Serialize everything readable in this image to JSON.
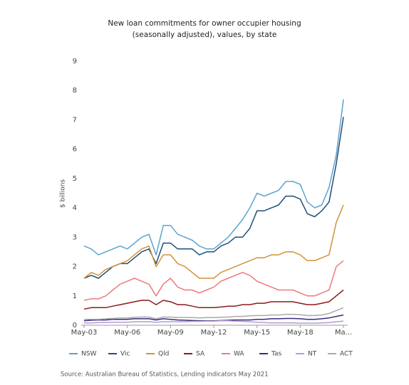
{
  "chart_data": {
    "type": "line",
    "title": "New loan commitments for owner occupier housing",
    "subtitle": "(seasonally adjusted), values, by state",
    "y_label": "$ billions",
    "source": "Source: Australian Bureau of Statistics, Lending indicators May 2021",
    "categories": [
      "May-03",
      null,
      null,
      null,
      null,
      null,
      "May-06",
      null,
      null,
      null,
      null,
      null,
      "May-09",
      null,
      null,
      null,
      null,
      null,
      "May-12",
      null,
      null,
      null,
      null,
      null,
      "May-15",
      null,
      null,
      null,
      null,
      null,
      "May-18",
      null,
      null,
      null,
      null,
      null,
      "Ma..."
    ],
    "ylim": [
      0,
      9
    ],
    "yticks": [
      0,
      1,
      2,
      3,
      4,
      5,
      6,
      7,
      8,
      9
    ],
    "grid": false,
    "series": [
      {
        "name": "NSW",
        "color": "#5ba3cf",
        "values": [
          2.7,
          2.6,
          2.4,
          2.5,
          2.6,
          2.7,
          2.6,
          2.8,
          3.0,
          3.1,
          2.4,
          3.4,
          3.4,
          3.1,
          3.0,
          2.9,
          2.7,
          2.6,
          2.6,
          2.8,
          3.0,
          3.3,
          3.6,
          4.0,
          4.5,
          4.4,
          4.5,
          4.6,
          4.9,
          4.9,
          4.8,
          4.2,
          4.0,
          4.1,
          4.7,
          5.8,
          7.7
        ]
      },
      {
        "name": "Vic",
        "color": "#1f4e79",
        "values": [
          1.6,
          1.7,
          1.6,
          1.8,
          2.0,
          2.1,
          2.1,
          2.3,
          2.5,
          2.6,
          2.1,
          2.8,
          2.8,
          2.6,
          2.6,
          2.6,
          2.4,
          2.5,
          2.5,
          2.7,
          2.8,
          3.0,
          3.0,
          3.3,
          3.9,
          3.9,
          4.0,
          4.1,
          4.4,
          4.4,
          4.3,
          3.8,
          3.7,
          3.9,
          4.2,
          5.5,
          7.1
        ]
      },
      {
        "name": "Qld",
        "color": "#d4923a",
        "values": [
          1.6,
          1.8,
          1.7,
          1.9,
          2.0,
          2.1,
          2.2,
          2.4,
          2.6,
          2.7,
          2.0,
          2.4,
          2.4,
          2.1,
          2.0,
          1.8,
          1.6,
          1.6,
          1.6,
          1.8,
          1.9,
          2.0,
          2.1,
          2.2,
          2.3,
          2.3,
          2.4,
          2.4,
          2.5,
          2.5,
          2.4,
          2.2,
          2.2,
          2.3,
          2.4,
          3.5,
          4.1
        ]
      },
      {
        "name": "SA",
        "color": "#8b1a1a",
        "values": [
          0.55,
          0.6,
          0.6,
          0.6,
          0.65,
          0.7,
          0.75,
          0.8,
          0.85,
          0.85,
          0.7,
          0.85,
          0.8,
          0.7,
          0.7,
          0.65,
          0.6,
          0.6,
          0.6,
          0.62,
          0.65,
          0.65,
          0.7,
          0.7,
          0.75,
          0.75,
          0.8,
          0.8,
          0.8,
          0.8,
          0.75,
          0.7,
          0.7,
          0.75,
          0.8,
          1.0,
          1.2
        ]
      },
      {
        "name": "WA",
        "color": "#ee7a7a",
        "values": [
          0.85,
          0.9,
          0.9,
          1.0,
          1.2,
          1.4,
          1.5,
          1.6,
          1.5,
          1.4,
          1.0,
          1.4,
          1.6,
          1.3,
          1.2,
          1.2,
          1.1,
          1.2,
          1.3,
          1.5,
          1.6,
          1.7,
          1.8,
          1.7,
          1.5,
          1.4,
          1.3,
          1.2,
          1.2,
          1.2,
          1.1,
          1.0,
          1.0,
          1.1,
          1.2,
          2.0,
          2.2
        ]
      },
      {
        "name": "Tas",
        "color": "#3b2a7a",
        "values": [
          0.15,
          0.17,
          0.18,
          0.18,
          0.2,
          0.2,
          0.2,
          0.22,
          0.22,
          0.22,
          0.18,
          0.22,
          0.2,
          0.18,
          0.17,
          0.16,
          0.15,
          0.15,
          0.15,
          0.16,
          0.17,
          0.18,
          0.18,
          0.18,
          0.2,
          0.2,
          0.22,
          0.22,
          0.23,
          0.23,
          0.22,
          0.2,
          0.2,
          0.22,
          0.25,
          0.3,
          0.35
        ]
      },
      {
        "name": "NT",
        "color": "#b49bd6",
        "values": [
          0.08,
          0.08,
          0.09,
          0.09,
          0.1,
          0.1,
          0.1,
          0.12,
          0.12,
          0.12,
          0.1,
          0.12,
          0.12,
          0.12,
          0.12,
          0.13,
          0.13,
          0.14,
          0.14,
          0.15,
          0.15,
          0.14,
          0.13,
          0.12,
          0.1,
          0.09,
          0.08,
          0.08,
          0.08,
          0.08,
          0.07,
          0.07,
          0.07,
          0.08,
          0.09,
          0.12,
          0.14
        ]
      },
      {
        "name": "ACT",
        "color": "#aaaaaa",
        "values": [
          0.2,
          0.2,
          0.2,
          0.22,
          0.23,
          0.25,
          0.25,
          0.27,
          0.28,
          0.28,
          0.22,
          0.28,
          0.28,
          0.26,
          0.26,
          0.26,
          0.25,
          0.26,
          0.26,
          0.27,
          0.28,
          0.3,
          0.3,
          0.32,
          0.33,
          0.33,
          0.35,
          0.35,
          0.37,
          0.37,
          0.36,
          0.33,
          0.33,
          0.35,
          0.4,
          0.5,
          0.6
        ]
      }
    ]
  }
}
